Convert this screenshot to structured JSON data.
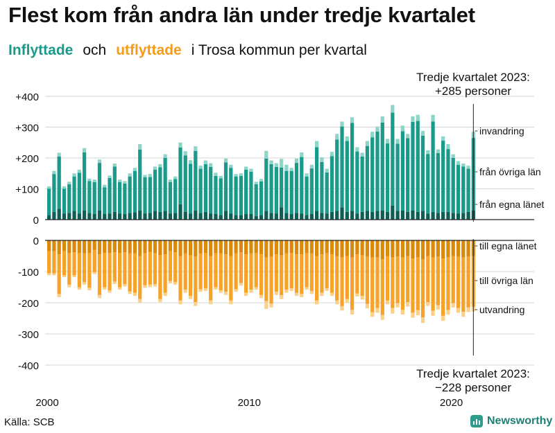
{
  "header": {
    "title": "Flest kom från andra län under tredje kvartalet",
    "subtitle_in": "Inflyttade",
    "subtitle_and": "och",
    "subtitle_out": "utflyttade",
    "subtitle_rest": "i Trosa kommun  per  kvartal"
  },
  "footer": {
    "source": "Källa: SCB",
    "brand": "Newsworthy"
  },
  "colors": {
    "in_invandring": "#8fd4c9",
    "in_ovriga_lan": "#1a9a8a",
    "in_egna_lanet": "#0d5e55",
    "out_egna_lanet": "#d98a0b",
    "out_ovriga_lan": "#f7a329",
    "out_utvandring": "#fbd189",
    "grid": "#d4d4d4"
  },
  "chart_data": {
    "type": "stacked-bar",
    "x_start_year": 2000,
    "period": "quarter",
    "ylim_top": [
      0,
      400
    ],
    "ylim_bottom": [
      -400,
      0
    ],
    "y_ticks_top": [
      "0",
      "+100",
      "+200",
      "+300",
      "+400"
    ],
    "y_ticks_bottom": [
      "0",
      "-100",
      "-200",
      "-300",
      "-400"
    ],
    "x_ticks": [
      {
        "year": 2000,
        "label": "2000"
      },
      {
        "year": 2010,
        "label": "2010"
      },
      {
        "year": 2020,
        "label": "2020"
      }
    ],
    "series_labels": {
      "invandring": "invandring",
      "ovriga_in": "från övriga län",
      "egna_in": "från egna länet",
      "egna_out": "till egna länet",
      "ovriga_out": "till övriga län",
      "utvandring": "utvandring"
    },
    "annotation_top": {
      "line1": "Tredje kvartalet 2023:",
      "line2": "+285 personer"
    },
    "annotation_bottom": {
      "line1": "Tredje kvartalet 2023:",
      "line2": "−228 personer"
    },
    "inflow_totals": [
      108,
      158,
      217,
      108,
      123,
      150,
      162,
      232,
      133,
      130,
      195,
      113,
      143,
      182,
      130,
      125,
      150,
      168,
      245,
      145,
      148,
      172,
      180,
      212,
      130,
      140,
      250,
      222,
      193,
      238,
      175,
      192,
      183,
      152,
      142,
      198,
      178,
      148,
      150,
      172,
      165,
      123,
      132,
      223,
      192,
      183,
      197,
      178,
      168,
      198,
      218,
      150,
      178,
      255,
      202,
      165,
      220,
      278,
      318,
      270,
      332,
      235,
      217,
      255,
      285,
      302,
      335,
      262,
      372,
      262,
      305,
      278,
      335,
      340,
      288,
      225,
      340,
      228,
      270,
      245,
      212,
      190,
      182,
      175,
      285
    ],
    "inflow_invandring": [
      8,
      10,
      12,
      8,
      8,
      10,
      10,
      14,
      8,
      8,
      11,
      8,
      8,
      10,
      8,
      8,
      10,
      10,
      18,
      8,
      10,
      10,
      10,
      12,
      8,
      8,
      16,
      14,
      12,
      15,
      10,
      12,
      12,
      10,
      8,
      12,
      10,
      8,
      8,
      10,
      10,
      8,
      8,
      25,
      12,
      12,
      28,
      20,
      10,
      14,
      15,
      10,
      12,
      20,
      15,
      12,
      14,
      18,
      16,
      15,
      18,
      14,
      12,
      16,
      18,
      16,
      20,
      15,
      25,
      16,
      18,
      14,
      18,
      20,
      16,
      12,
      22,
      12,
      14,
      16,
      12,
      12,
      10,
      10,
      20
    ],
    "inflow_egna_lanet": [
      15,
      25,
      35,
      20,
      22,
      28,
      20,
      30,
      22,
      18,
      30,
      18,
      20,
      25,
      20,
      18,
      22,
      24,
      30,
      20,
      22,
      28,
      25,
      28,
      20,
      22,
      50,
      25,
      20,
      30,
      22,
      25,
      20,
      18,
      15,
      28,
      20,
      15,
      15,
      18,
      18,
      12,
      15,
      28,
      22,
      20,
      40,
      22,
      18,
      22,
      20,
      15,
      18,
      28,
      22,
      20,
      25,
      28,
      40,
      25,
      28,
      20,
      25,
      28,
      25,
      28,
      30,
      25,
      45,
      28,
      30,
      25,
      30,
      25,
      28,
      20,
      25,
      22,
      25,
      25,
      22,
      20,
      22,
      25,
      30
    ],
    "outflow_totals": [
      112,
      112,
      182,
      118,
      150,
      118,
      158,
      142,
      160,
      108,
      185,
      158,
      168,
      140,
      158,
      148,
      172,
      178,
      200,
      152,
      150,
      148,
      198,
      178,
      138,
      142,
      205,
      168,
      188,
      210,
      165,
      162,
      205,
      158,
      168,
      175,
      205,
      165,
      145,
      178,
      168,
      158,
      185,
      220,
      215,
      175,
      188,
      168,
      162,
      178,
      182,
      158,
      172,
      205,
      178,
      162,
      178,
      205,
      225,
      200,
      238,
      180,
      190,
      218,
      245,
      232,
      255,
      205,
      235,
      215,
      238,
      212,
      248,
      240,
      265,
      210,
      242,
      222,
      258,
      238,
      215,
      232,
      245,
      230,
      228
    ],
    "outflow_egna_lanet": [
      35,
      35,
      45,
      35,
      40,
      38,
      40,
      42,
      40,
      30,
      45,
      40,
      40,
      38,
      40,
      38,
      42,
      42,
      50,
      40,
      38,
      40,
      48,
      45,
      35,
      38,
      50,
      42,
      48,
      52,
      42,
      40,
      50,
      40,
      42,
      45,
      50,
      42,
      38,
      45,
      42,
      40,
      45,
      55,
      52,
      45,
      48,
      42,
      40,
      45,
      45,
      40,
      42,
      50,
      45,
      40,
      45,
      50,
      55,
      50,
      55,
      45,
      48,
      52,
      55,
      55,
      60,
      50,
      55,
      52,
      55,
      50,
      58,
      55,
      60,
      50,
      55,
      52,
      58,
      55,
      50,
      52,
      55,
      52,
      50
    ],
    "outflow_utvandring": [
      6,
      6,
      10,
      6,
      8,
      6,
      8,
      8,
      8,
      6,
      10,
      8,
      8,
      8,
      8,
      8,
      8,
      10,
      12,
      8,
      8,
      8,
      10,
      10,
      8,
      8,
      12,
      10,
      10,
      12,
      8,
      8,
      12,
      8,
      8,
      10,
      12,
      8,
      8,
      10,
      10,
      8,
      10,
      25,
      12,
      10,
      12,
      10,
      8,
      10,
      10,
      8,
      10,
      12,
      10,
      8,
      10,
      12,
      14,
      12,
      15,
      10,
      12,
      14,
      15,
      15,
      16,
      12,
      18,
      14,
      15,
      14,
      16,
      16,
      18,
      12,
      16,
      14,
      16,
      15,
      14,
      15,
      16,
      15,
      15
    ]
  }
}
